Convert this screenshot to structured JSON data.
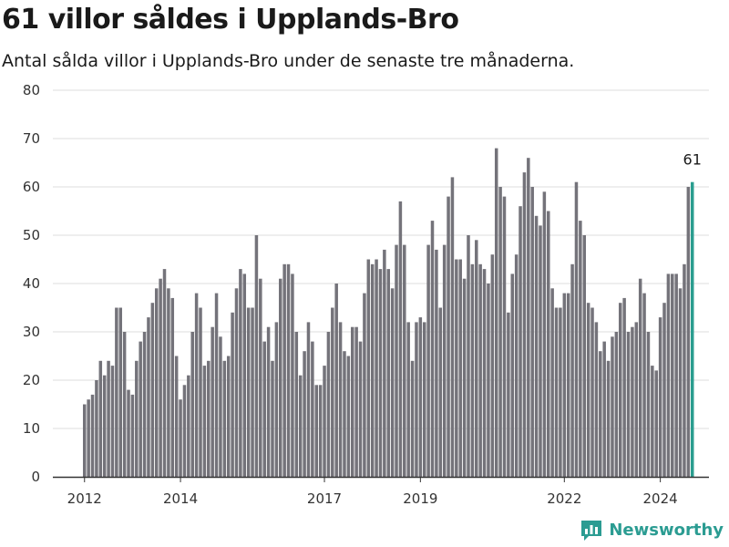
{
  "header": {
    "title": "61 villor såldes i Upplands-Bro",
    "subtitle": "Antal sålda villor i Upplands-Bro under de senaste tre månaderna."
  },
  "brand": {
    "name": "Newsworthy",
    "icon": "newsworthy-logo-icon"
  },
  "colors": {
    "bar": "#74737a",
    "highlight": "#2a9d8f",
    "grid": "#dddddd",
    "axis": "#333333"
  },
  "chart_data": {
    "type": "bar",
    "title": "61 villor såldes i Upplands-Bro",
    "subtitle": "Antal sålda villor i Upplands-Bro under de senaste tre månaderna.",
    "xlabel": "",
    "ylabel": "",
    "ylim": [
      0,
      80
    ],
    "y_ticks": [
      0,
      10,
      20,
      30,
      40,
      50,
      60,
      70,
      80
    ],
    "x_tick_labels": [
      "2012",
      "2014",
      "2017",
      "2019",
      "2022",
      "2024"
    ],
    "grid": true,
    "legend": "none",
    "highlight_label": "61",
    "values": [
      15,
      16,
      17,
      20,
      24,
      21,
      24,
      23,
      35,
      35,
      30,
      18,
      17,
      24,
      28,
      30,
      33,
      36,
      39,
      41,
      43,
      39,
      37,
      25,
      16,
      19,
      21,
      30,
      38,
      35,
      23,
      24,
      31,
      38,
      29,
      24,
      25,
      34,
      39,
      43,
      42,
      35,
      35,
      50,
      41,
      28,
      31,
      24,
      32,
      41,
      44,
      44,
      42,
      30,
      21,
      26,
      32,
      28,
      19,
      19,
      23,
      30,
      35,
      40,
      32,
      26,
      25,
      31,
      31,
      28,
      38,
      45,
      44,
      45,
      43,
      47,
      43,
      39,
      48,
      57,
      48,
      32,
      24,
      32,
      33,
      32,
      48,
      53,
      47,
      35,
      48,
      58,
      62,
      45,
      45,
      41,
      50,
      44,
      49,
      44,
      43,
      40,
      46,
      68,
      60,
      58,
      34,
      42,
      46,
      56,
      63,
      66,
      60,
      54,
      52,
      59,
      55,
      39,
      35,
      35,
      38,
      38,
      44,
      61,
      53,
      50,
      36,
      35,
      32,
      26,
      28,
      24,
      29,
      30,
      36,
      37,
      30,
      31,
      32,
      41,
      38,
      30,
      23,
      22,
      33,
      36,
      42,
      42,
      42,
      39,
      44,
      60,
      61
    ]
  }
}
